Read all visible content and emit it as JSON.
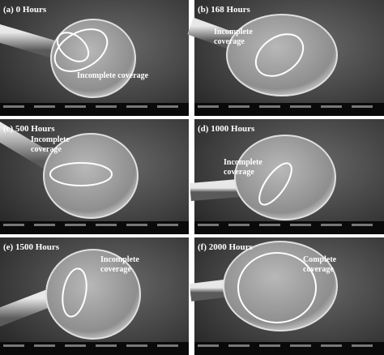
{
  "panels": [
    {
      "label": "(a) 0 Hours",
      "annotation": [
        "Incomplete coverage"
      ]
    },
    {
      "label": "(b) 168 Hours",
      "annotation": [
        "Incomplete",
        "coverage"
      ]
    },
    {
      "label": "(c) 500 Hours",
      "annotation": [
        "Incomplete",
        "coverage"
      ]
    },
    {
      "label": "(d) 1000 Hours",
      "annotation": [
        "Incomplete",
        "coverage"
      ]
    },
    {
      "label": "(e) 1500 Hours",
      "annotation": [
        "Incomplete",
        "coverage"
      ]
    },
    {
      "label": "(f) 2000 Hours",
      "annotation": [
        "Complete",
        "coverage"
      ]
    }
  ]
}
